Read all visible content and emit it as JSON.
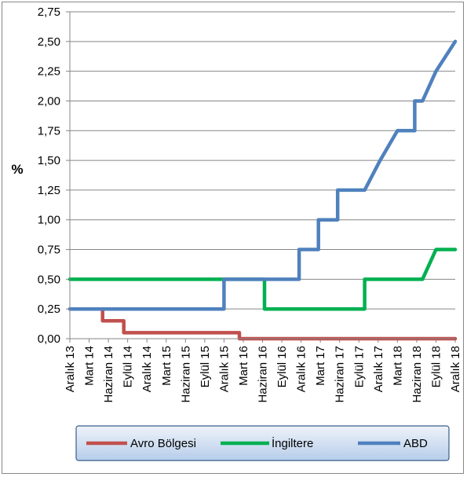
{
  "chart_data": {
    "type": "line",
    "ylabel": "%",
    "ylim": [
      0,
      2.75
    ],
    "y_ticks": [
      "0,00",
      "0,25",
      "0,50",
      "0,75",
      "1,00",
      "1,25",
      "1,50",
      "1,75",
      "2,00",
      "2,25",
      "2,50",
      "2,75"
    ],
    "categories": [
      "Aralık 13",
      "Mart 14",
      "Haziran 14",
      "Eylül 14",
      "Aralık 14",
      "Mart 15",
      "Haziran 15",
      "Eylül 15",
      "Aralık 15",
      "Mart 16",
      "Haziran 16",
      "Eylül 16",
      "Aralık 16",
      "Mart 17",
      "Haziran 17",
      "Eylül 17",
      "Aralık 17",
      "Mart 18",
      "Haziran 18",
      "Eylül 18",
      "Aralık 18"
    ],
    "legend_position": "bottom",
    "series": [
      {
        "name": "Avro Bölgesi",
        "color": "#C0504D",
        "step": true,
        "points": [
          [
            0,
            0.25
          ],
          [
            1.7,
            0.25
          ],
          [
            1.7,
            0.15
          ],
          [
            2.8,
            0.15
          ],
          [
            2.8,
            0.05
          ],
          [
            8.8,
            0.05
          ],
          [
            8.8,
            0
          ],
          [
            20,
            0
          ]
        ]
      },
      {
        "name": "İngiltere",
        "color": "#00B050",
        "step": true,
        "points": [
          [
            0,
            0.5
          ],
          [
            10.1,
            0.5
          ],
          [
            10.1,
            0.25
          ],
          [
            15.3,
            0.25
          ],
          [
            15.3,
            0.5
          ],
          [
            18.3,
            0.5
          ],
          [
            19.0,
            0.75
          ],
          [
            20,
            0.75
          ]
        ]
      },
      {
        "name": "ABD",
        "color": "#4F81BD",
        "step": true,
        "points": [
          [
            0,
            0.25
          ],
          [
            8.0,
            0.25
          ],
          [
            8.0,
            0.5
          ],
          [
            11.9,
            0.5
          ],
          [
            11.9,
            0.75
          ],
          [
            12.9,
            0.75
          ],
          [
            12.9,
            1.0
          ],
          [
            13.9,
            1.0
          ],
          [
            13.9,
            1.25
          ],
          [
            15.3,
            1.25
          ],
          [
            16.1,
            1.5
          ],
          [
            17.0,
            1.75
          ],
          [
            17.9,
            1.75
          ],
          [
            17.9,
            2.0
          ],
          [
            18.3,
            2.0
          ],
          [
            19.0,
            2.25
          ],
          [
            20,
            2.5
          ]
        ]
      }
    ]
  }
}
